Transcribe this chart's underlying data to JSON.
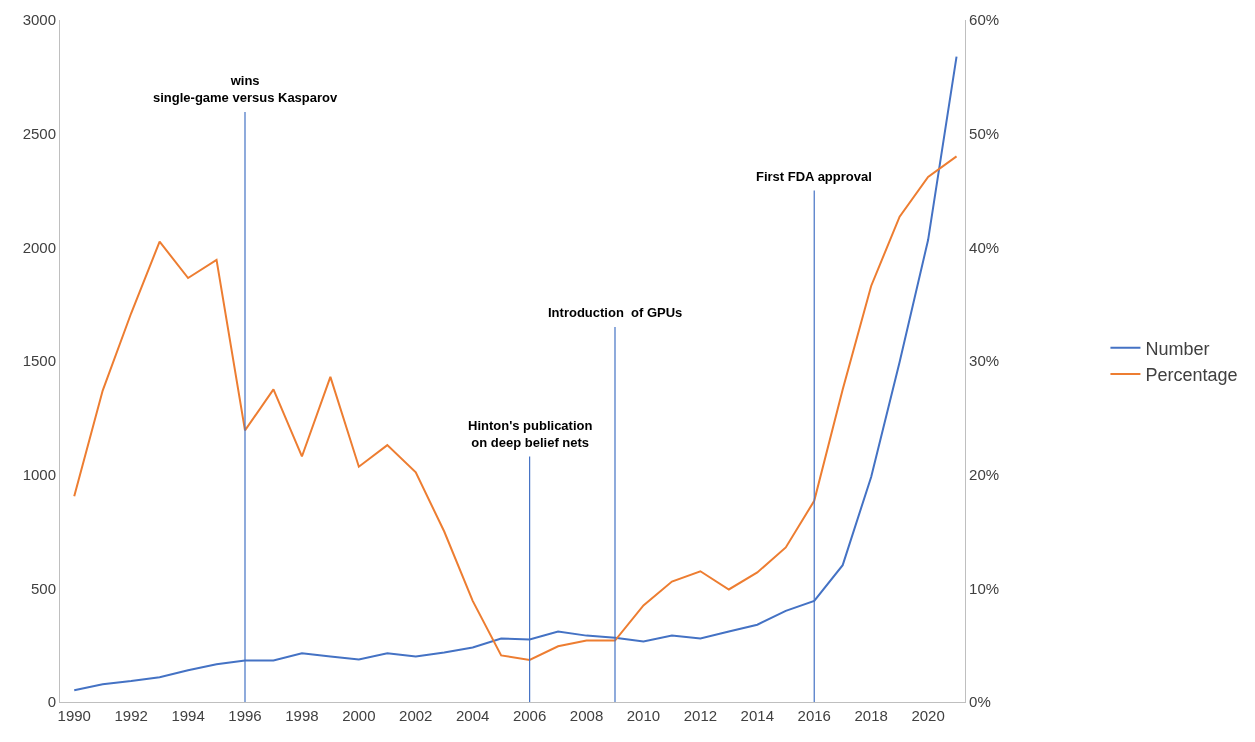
{
  "chart_data": {
    "type": "line",
    "x": [
      1990,
      1991,
      1992,
      1993,
      1994,
      1995,
      1996,
      1997,
      1998,
      1999,
      2000,
      2001,
      2002,
      2003,
      2004,
      2005,
      2006,
      2007,
      2008,
      2009,
      2010,
      2011,
      2012,
      2013,
      2014,
      2015,
      2016,
      2017,
      2018,
      2019,
      2020,
      2021
    ],
    "series": [
      {
        "name": "Number",
        "color": "#4472c4",
        "values": [
          52,
          78,
          92,
          109,
          140,
          166,
          183,
          183,
          214,
          200,
          187,
          214,
          200,
          218,
          240,
          279,
          275,
          310,
          292,
          283,
          266,
          292,
          279,
          310,
          340,
          401,
          445,
          602,
          990,
          1496,
          2032,
          2839
        ]
      },
      {
        "name": "Percentage",
        "color": "#ed7d31",
        "axis": "y2",
        "values": [
          18.1,
          27.4,
          34.2,
          40.5,
          37.3,
          38.9,
          23.9,
          27.5,
          21.6,
          28.6,
          20.7,
          22.6,
          20.2,
          15.0,
          8.9,
          4.1,
          3.7,
          4.9,
          5.4,
          5.4,
          8.5,
          10.6,
          11.5,
          9.9,
          11.4,
          13.6,
          17.7,
          27.5,
          36.6,
          42.7,
          46.2,
          48.0
        ]
      }
    ],
    "xlim": [
      1989.5,
      2021.3
    ],
    "xticks": [
      1990,
      1992,
      1994,
      1996,
      1998,
      2000,
      2002,
      2004,
      2006,
      2008,
      2010,
      2012,
      2014,
      2016,
      2018,
      2020
    ],
    "ylim": [
      0,
      3000
    ],
    "yticks": [
      0,
      500,
      1000,
      1500,
      2000,
      2500,
      3000
    ],
    "y2lim": [
      0,
      60
    ],
    "y2ticks": [
      {
        "value": 0,
        "label": "0%"
      },
      {
        "value": 10,
        "label": "10%"
      },
      {
        "value": 20,
        "label": "20%"
      },
      {
        "value": 30,
        "label": "30%"
      },
      {
        "value": 40,
        "label": "40%"
      },
      {
        "value": 50,
        "label": "50%"
      },
      {
        "value": 60,
        "label": "60%"
      }
    ],
    "ref_lines": [
      {
        "axis": "x",
        "value": 1996,
        "label": "wins\nsingle-game versus Kasparov",
        "color": "#4472c4"
      },
      {
        "axis": "x",
        "value": 2006,
        "label": "Hinton's publication\non deep belief nets",
        "color": "#4472c4"
      },
      {
        "axis": "x",
        "value": 2009,
        "label": "Introduction  of GPUs",
        "color": "#4472c4"
      },
      {
        "axis": "x",
        "value": 2016,
        "label": "First FDA approval",
        "color": "#4472c4"
      }
    ],
    "legend": "right",
    "marker": "none",
    "line_style": "solid"
  }
}
